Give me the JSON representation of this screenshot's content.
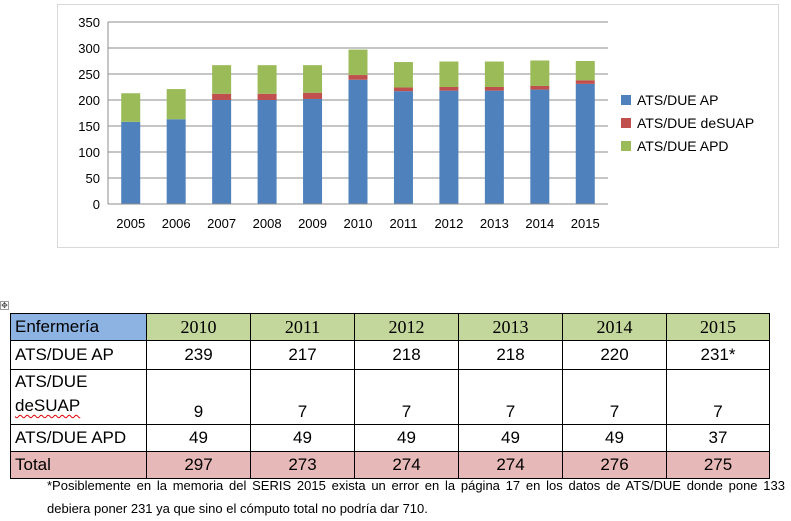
{
  "chart_data": {
    "type": "bar",
    "stacked": true,
    "categories": [
      "2005",
      "2006",
      "2007",
      "2008",
      "2009",
      "2010",
      "2011",
      "2012",
      "2013",
      "2014",
      "2015"
    ],
    "series": [
      {
        "name": "ATS/DUE AP",
        "color": "#4f81bd",
        "values": [
          158,
          163,
          200,
          200,
          202,
          239,
          217,
          218,
          218,
          220,
          231
        ]
      },
      {
        "name": "ATS/DUE deSUAP",
        "color": "#c0504d",
        "values": [
          0,
          0,
          12,
          12,
          12,
          9,
          7,
          7,
          7,
          7,
          7
        ]
      },
      {
        "name": "ATS/DUE APD",
        "color": "#9bbb59",
        "values": [
          55,
          58,
          55,
          55,
          53,
          49,
          49,
          49,
          49,
          49,
          37
        ]
      }
    ],
    "ylim": [
      0,
      350
    ],
    "yticks": [
      0,
      50,
      100,
      150,
      200,
      250,
      300,
      350
    ],
    "grid": true,
    "legend": "right"
  },
  "table": {
    "corner": "Enfermería",
    "years": [
      "2010",
      "2011",
      "2012",
      "2013",
      "2014",
      "2015"
    ],
    "rows": [
      {
        "label": "ATS/DUE AP",
        "values": [
          "239",
          "217",
          "218",
          "218",
          "220",
          "231*"
        ]
      },
      {
        "label_line1": "ATS/DUE",
        "label_line2": "deSUAP",
        "values": [
          "9",
          "7",
          "7",
          "7",
          "7",
          "7"
        ]
      },
      {
        "label": "ATS/DUE APD",
        "values": [
          "49",
          "49",
          "49",
          "49",
          "49",
          "37"
        ]
      },
      {
        "label": "Total",
        "values": [
          "297",
          "273",
          "274",
          "274",
          "276",
          "275"
        ]
      }
    ]
  },
  "footnote": "*Posiblemente en la memoria del SERIS 2015 exista un error en la página 17 en los datos de ATS/DUE donde pone 133 debiera poner 231 ya que sino el cómputo total no podría dar 710."
}
